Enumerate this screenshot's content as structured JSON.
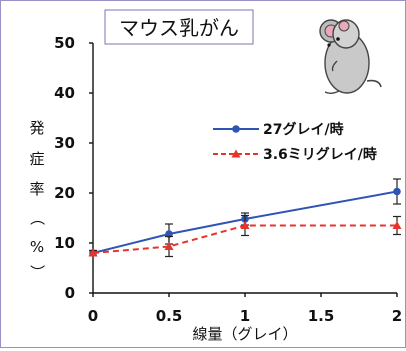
{
  "chart_data": {
    "type": "line",
    "title": "マウス乳がん",
    "xlabel": "線量（グレイ）",
    "ylabel_chars": [
      "発",
      "症",
      "率",
      "（",
      "%",
      "）"
    ],
    "xlim": [
      0,
      2
    ],
    "ylim": [
      0,
      50
    ],
    "x_ticks": [
      "0",
      "0.5",
      "1",
      "1.5",
      "2"
    ],
    "y_ticks": [
      "0",
      "10",
      "20",
      "30",
      "40",
      "50"
    ],
    "legend_position": "upper-right",
    "series": [
      {
        "name": "27グレイ/時",
        "color": "#2e55b4",
        "line_style": "solid",
        "marker": "circle",
        "x": [
          0,
          0.5,
          1,
          2
        ],
        "y": [
          8.0,
          11.8,
          14.8,
          20.3
        ],
        "error": [
          0.5,
          2.0,
          1.2,
          2.5
        ]
      },
      {
        "name": "3.6ミリグレイ/時",
        "color": "#e8332b",
        "line_style": "dashed",
        "marker": "triangle",
        "x": [
          0,
          0.5,
          1,
          2
        ],
        "y": [
          8.0,
          9.3,
          13.5,
          13.5
        ],
        "error": [
          0.5,
          2.0,
          2.0,
          1.8
        ]
      }
    ]
  }
}
